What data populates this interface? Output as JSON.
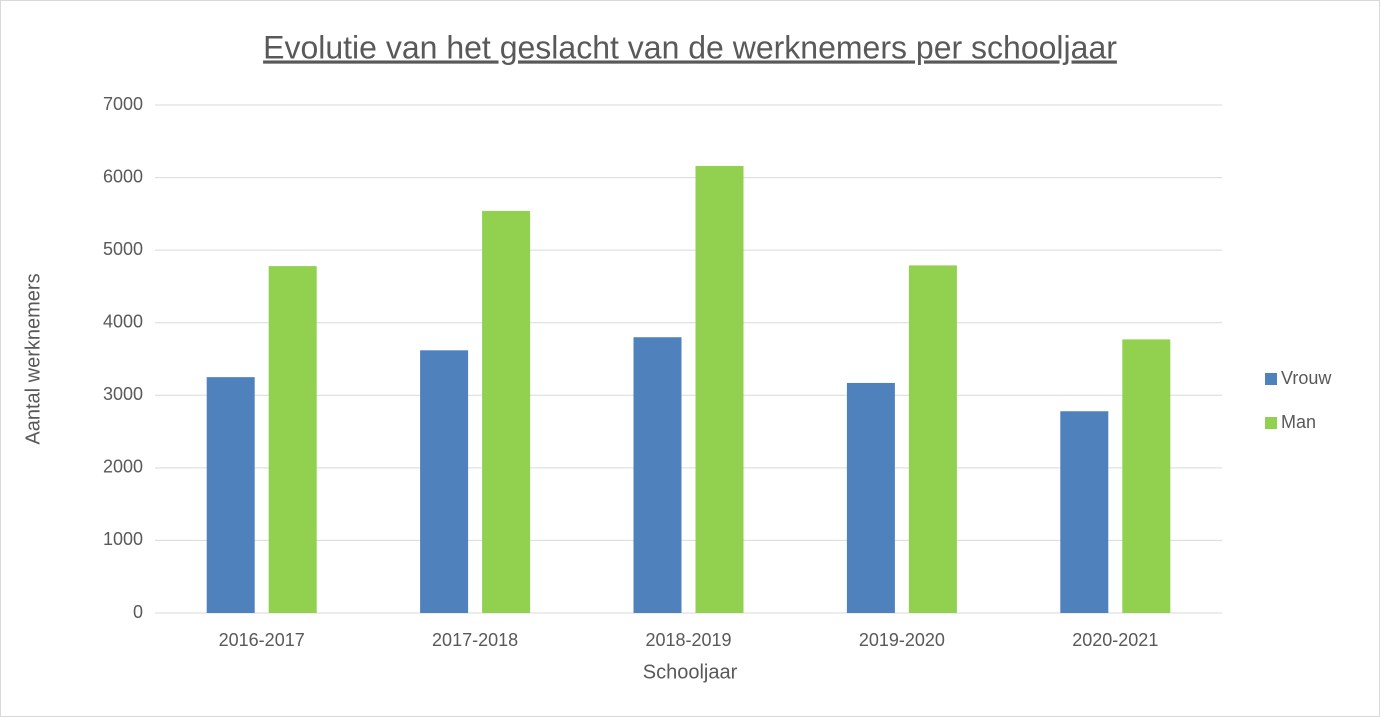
{
  "chart_data": {
    "type": "bar",
    "title": "Evolutie van het geslacht van de werknemers per schooljaar",
    "x_label": "Schooljaar",
    "y_label": "Aantal werknemers",
    "categories": [
      "2016-2017",
      "2017-2018",
      "2018-2019",
      "2019-2020",
      "2020-2021"
    ],
    "series": [
      {
        "name": "Vrouw",
        "color": "#4f81bd",
        "values": [
          3250,
          3620,
          3800,
          3170,
          2780
        ]
      },
      {
        "name": "Man",
        "color": "#92d050",
        "values": [
          4780,
          5540,
          6160,
          4790,
          3770
        ]
      }
    ],
    "ylim": [
      0,
      7000
    ],
    "yticks": [
      0,
      1000,
      2000,
      3000,
      4000,
      5000,
      6000,
      7000
    ],
    "grid": true,
    "legend": "right"
  }
}
